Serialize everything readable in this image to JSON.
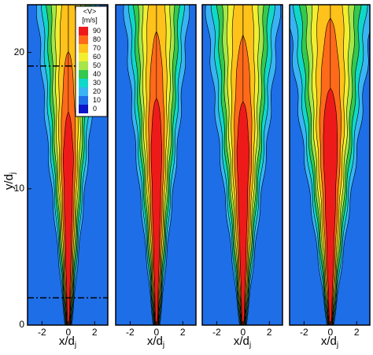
{
  "chart_data": [
    {
      "type": "contour",
      "xlim": [
        -3.1,
        3.0
      ],
      "ylim": [
        0,
        23.5
      ],
      "xticks": [
        -2,
        0,
        2
      ],
      "yticks": [
        0,
        10,
        20
      ],
      "xlabel": "x/d",
      "xlabel_sub": "j",
      "ylabel": "y/d",
      "ylabel_sub": "j",
      "hlines": [
        19,
        2
      ],
      "colorbar": {
        "title": "<V>",
        "unit": "[m/s]",
        "levels": [
          90,
          80,
          70,
          60,
          50,
          40,
          30,
          20,
          10,
          0
        ],
        "colors": [
          "#ee1a1a",
          "#ff6a1a",
          "#ffc21a",
          "#f2ee30",
          "#a6e64a",
          "#34c84e",
          "#10d8c8",
          "#38b4f4",
          "#1e6ee8",
          "#0a14c8"
        ]
      }
    },
    {
      "type": "contour",
      "xlim": [
        -3.1,
        3.0
      ],
      "ylim": [
        0,
        23.5
      ],
      "xticks": [
        -2,
        0,
        2
      ],
      "xlabel": "x/d",
      "xlabel_sub": "j"
    },
    {
      "type": "contour",
      "xlim": [
        -3.1,
        3.0
      ],
      "ylim": [
        0,
        23.5
      ],
      "xticks": [
        -2,
        0,
        2
      ],
      "xlabel": "x/d",
      "xlabel_sub": "j"
    },
    {
      "type": "contour",
      "xlim": [
        -3.1,
        3.0
      ],
      "ylim": [
        0,
        23.5
      ],
      "xticks": [
        -2,
        0,
        2
      ],
      "xlabel": "x/d",
      "xlabel_sub": "j"
    }
  ]
}
